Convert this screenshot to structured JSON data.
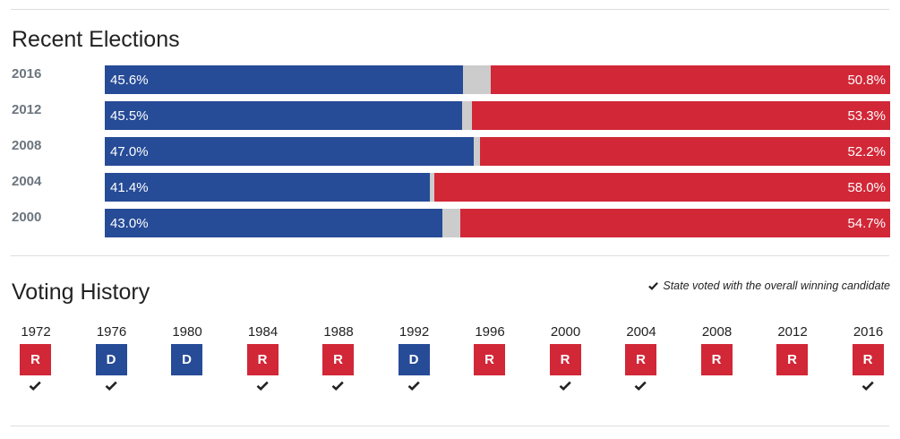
{
  "recent": {
    "title": "Recent Elections"
  },
  "history": {
    "title": "Voting History",
    "legend_text": "State voted with the overall winning candidate",
    "legend_icon": "check-icon"
  },
  "colors": {
    "dem": "#264b97",
    "rep": "#d12737",
    "other": "#cccccc"
  },
  "chart_data": [
    {
      "type": "bar",
      "stacked": true,
      "orientation": "horizontal",
      "categories": [
        "2016",
        "2012",
        "2008",
        "2004",
        "2000"
      ],
      "series": [
        {
          "values": [
            45.6,
            45.5,
            47.0,
            41.4,
            43.0
          ],
          "labels": [
            "45.6%",
            "45.5%",
            "47.0%",
            "41.4%",
            "43.0%"
          ]
        },
        {
          "values": [
            50.8,
            53.3,
            52.2,
            58.0,
            54.7
          ],
          "labels": [
            "50.8%",
            "53.3%",
            "52.2%",
            "58.0%",
            "54.7%"
          ]
        }
      ],
      "xlim": [
        0,
        100
      ]
    },
    {
      "type": "table",
      "columns": [
        "1972",
        "1976",
        "1980",
        "1984",
        "1988",
        "1992",
        "1996",
        "2000",
        "2004",
        "2008",
        "2012",
        "2016"
      ],
      "party": [
        "R",
        "D",
        "D",
        "R",
        "R",
        "D",
        "R",
        "R",
        "R",
        "R",
        "R",
        "R"
      ],
      "voted_with_winner": [
        true,
        true,
        false,
        true,
        true,
        true,
        false,
        true,
        true,
        false,
        false,
        true
      ]
    }
  ]
}
